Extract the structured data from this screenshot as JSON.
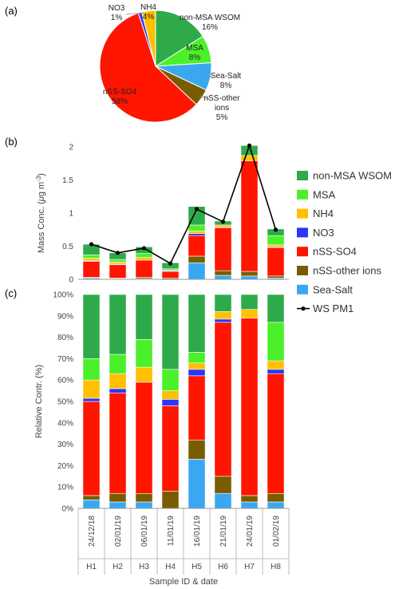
{
  "panels": {
    "a": "(a)",
    "b": "(b)",
    "c": "(c)"
  },
  "colors": {
    "non-MSA WSOM": "#2eaa4a",
    "MSA": "#4bf02a",
    "NH4": "#ffc000",
    "NO3": "#2b35ff",
    "nSS-SO4": "#ff1500",
    "nSS-other ions": "#7a5c00",
    "Sea-Salt": "#3aa8f0",
    "WS PM1": "#000000"
  },
  "legend": [
    "non-MSA WSOM",
    "MSA",
    "NH4",
    "NO3",
    "nSS-SO4",
    "nSS-other ions",
    "Sea-Salt",
    "WS PM1"
  ],
  "pie_labels": {
    "NO3": [
      "NO3",
      "1%"
    ],
    "NH4": [
      "NH4",
      "4%"
    ],
    "non-MSA WSOM": [
      "non-MSA WSOM",
      "16%"
    ],
    "MSA": [
      "MSA",
      "8%"
    ],
    "Sea-Salt": [
      "Sea-Salt",
      "8%"
    ],
    "nSS-other ions": [
      "nSS-other",
      "ions",
      "5%"
    ],
    "nSS-SO4": [
      "nSS-SO4",
      "58%"
    ]
  },
  "chart_data": [
    {
      "type": "pie",
      "panel": "(a)",
      "slices": [
        {
          "name": "non-MSA WSOM",
          "value": 16
        },
        {
          "name": "MSA",
          "value": 8
        },
        {
          "name": "Sea-Salt",
          "value": 8
        },
        {
          "name": "nSS-other ions",
          "value": 5
        },
        {
          "name": "nSS-SO4",
          "value": 58
        },
        {
          "name": "NO3",
          "value": 1
        },
        {
          "name": "NH4",
          "value": 4
        }
      ]
    },
    {
      "type": "bar",
      "stacked": true,
      "panel": "(b)",
      "ylabel_prefix": "Mass Conc. (",
      "ylabel_mu": "μ",
      "ylabel_unit": "g m",
      "ylabel_sup": "-3",
      "ylabel_suffix": ")",
      "ylim": [
        0,
        2
      ],
      "yticks": [
        "0",
        "0.5",
        "1",
        "1.5",
        "2"
      ],
      "categories": [
        "H1",
        "H2",
        "H3",
        "H4",
        "H5",
        "H6",
        "H7",
        "H8"
      ],
      "series": [
        {
          "name": "Sea-Salt",
          "values": [
            0.02,
            0.01,
            0.01,
            0.0,
            0.25,
            0.06,
            0.05,
            0.02
          ]
        },
        {
          "name": "nSS-other ions",
          "values": [
            0.01,
            0.01,
            0.02,
            0.02,
            0.1,
            0.07,
            0.07,
            0.03
          ]
        },
        {
          "name": "nSS-SO4",
          "values": [
            0.24,
            0.2,
            0.26,
            0.1,
            0.31,
            0.65,
            1.67,
            0.43
          ]
        },
        {
          "name": "NO3",
          "values": [
            0.01,
            0.01,
            0.0,
            0.01,
            0.03,
            0.01,
            0.0,
            0.01
          ]
        },
        {
          "name": "NH4",
          "values": [
            0.04,
            0.03,
            0.04,
            0.01,
            0.04,
            0.03,
            0.08,
            0.03
          ]
        },
        {
          "name": "MSA",
          "values": [
            0.05,
            0.04,
            0.06,
            0.02,
            0.09,
            0.0,
            0.0,
            0.14
          ]
        },
        {
          "name": "non-MSA WSOM",
          "values": [
            0.16,
            0.1,
            0.1,
            0.09,
            0.28,
            0.06,
            0.15,
            0.1
          ]
        }
      ],
      "line": {
        "name": "WS PM1",
        "values": [
          0.53,
          0.4,
          0.47,
          0.24,
          1.06,
          0.87,
          2.02,
          0.75
        ]
      }
    },
    {
      "type": "bar",
      "stacked": true,
      "panel": "(c)",
      "ylabel": "Relative Contr. (%)",
      "xlabel": "Sample ID & date",
      "ylim": [
        0,
        100
      ],
      "yticks": [
        "0%",
        "10%",
        "20%",
        "30%",
        "40%",
        "50%",
        "60%",
        "70%",
        "80%",
        "90%",
        "100%"
      ],
      "categories": [
        "H1",
        "H2",
        "H3",
        "H4",
        "H5",
        "H6",
        "H7",
        "H8"
      ],
      "dates": [
        "24/12/18",
        "02/01/19",
        "06/01/19",
        "11/01/19",
        "16/01/19",
        "21/01/19",
        "24/01/19",
        "01/02/19"
      ],
      "series": [
        {
          "name": "Sea-Salt",
          "values": [
            4,
            3,
            3,
            0,
            23,
            7,
            3,
            3
          ]
        },
        {
          "name": "nSS-other ions",
          "values": [
            2,
            4,
            4,
            8,
            9,
            8,
            3,
            4
          ]
        },
        {
          "name": "nSS-SO4",
          "values": [
            44,
            47,
            52,
            40,
            30,
            72,
            83,
            56
          ]
        },
        {
          "name": "NO3",
          "values": [
            1.5,
            2,
            0,
            3,
            3,
            1.5,
            0,
            2
          ]
        },
        {
          "name": "NH4",
          "values": [
            8.5,
            7,
            7,
            4,
            3,
            3.5,
            4,
            4
          ]
        },
        {
          "name": "MSA",
          "values": [
            10,
            9,
            13,
            10,
            5,
            0,
            0,
            18
          ]
        },
        {
          "name": "non-MSA WSOM",
          "values": [
            30,
            28,
            21,
            35,
            27,
            8,
            7,
            13
          ]
        }
      ]
    }
  ]
}
